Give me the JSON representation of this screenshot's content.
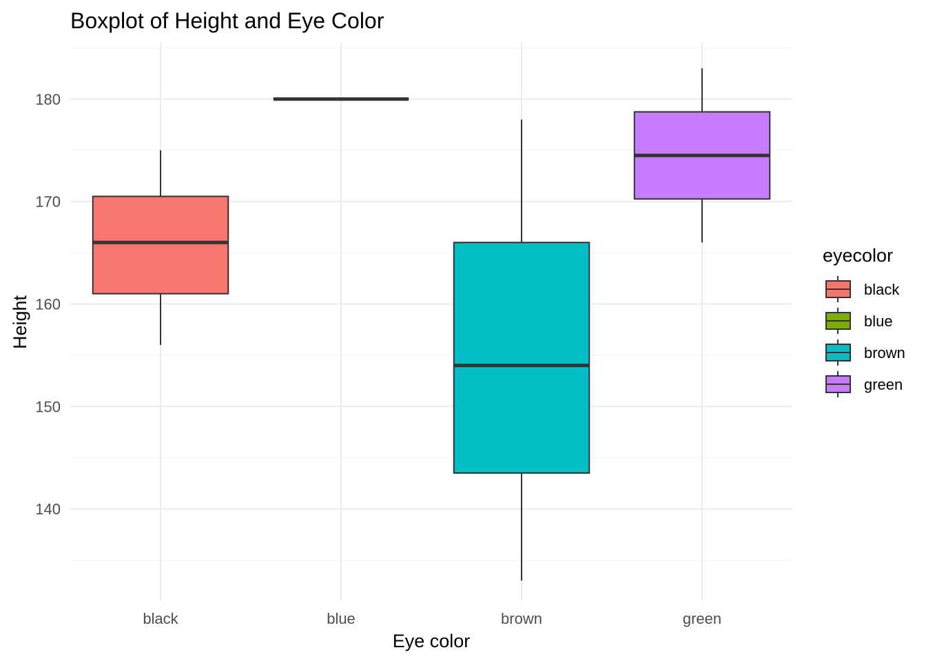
{
  "chart_data": {
    "type": "boxplot",
    "title": "Boxplot of Height and Eye Color",
    "xlabel": "Eye color",
    "ylabel": "Height",
    "categories": [
      "black",
      "blue",
      "brown",
      "green"
    ],
    "ylim": [
      131,
      185.5
    ],
    "yticks": [
      140,
      150,
      160,
      170,
      180
    ],
    "grid": true,
    "boxes": [
      {
        "category": "black",
        "min": 156,
        "q1": 161,
        "median": 166,
        "q3": 170.5,
        "max": 175,
        "color": "#F8766D"
      },
      {
        "category": "blue",
        "min": 180,
        "q1": 180,
        "median": 180,
        "q3": 180,
        "max": 180,
        "color": "#7CAE00"
      },
      {
        "category": "brown",
        "min": 133,
        "q1": 143.5,
        "median": 154,
        "q3": 166,
        "max": 178,
        "color": "#00BFC4"
      },
      {
        "category": "green",
        "min": 166,
        "q1": 170.25,
        "median": 174.5,
        "q3": 178.75,
        "max": 183,
        "color": "#C77CFF"
      }
    ],
    "legend": {
      "title": "eyecolor",
      "position": "right",
      "items": [
        {
          "label": "black",
          "color": "#F8766D"
        },
        {
          "label": "blue",
          "color": "#7CAE00"
        },
        {
          "label": "brown",
          "color": "#00BFC4"
        },
        {
          "label": "green",
          "color": "#C77CFF"
        }
      ]
    }
  }
}
